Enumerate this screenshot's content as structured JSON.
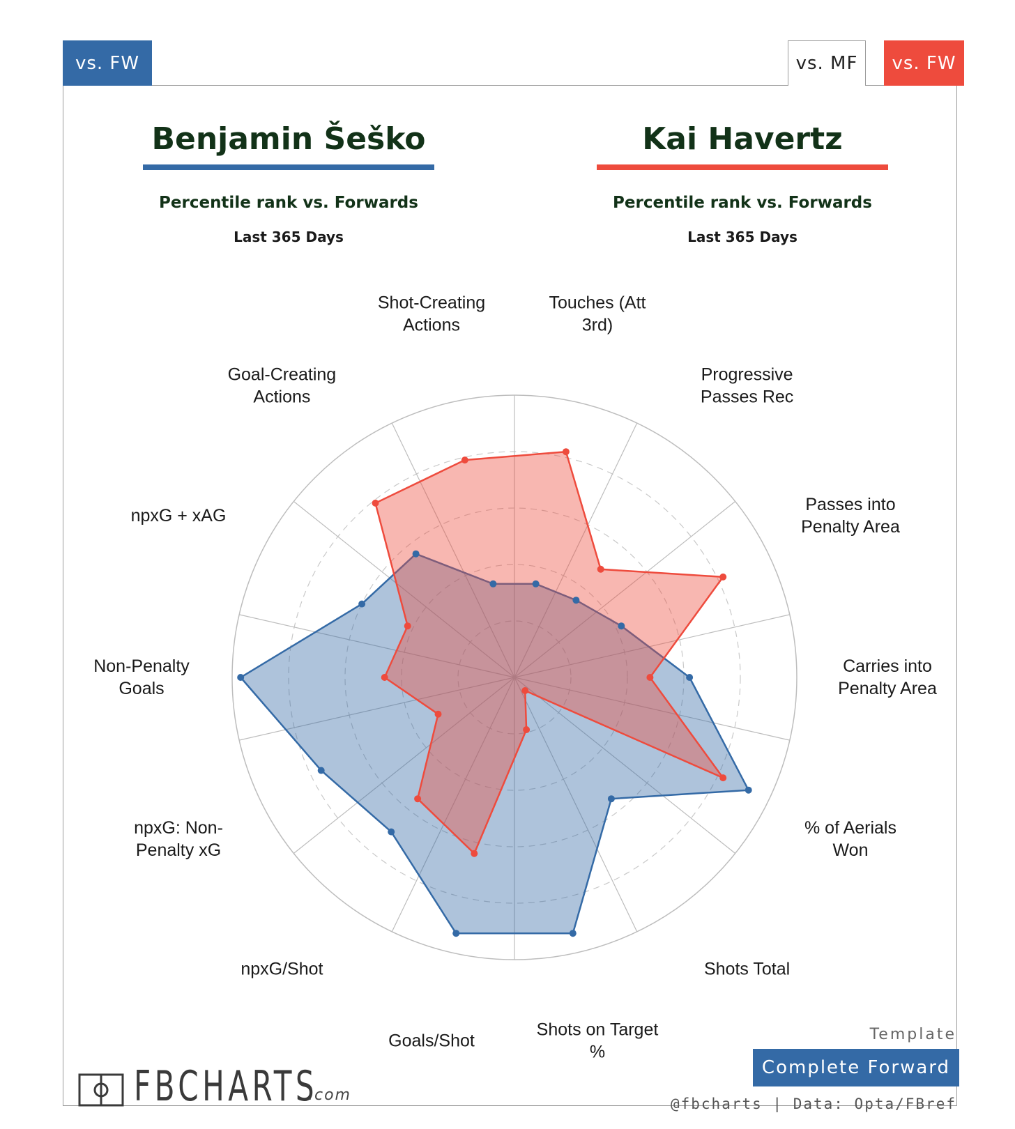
{
  "tabs": {
    "left": "vs. FW",
    "mf": "vs. MF",
    "fw": "vs. FW"
  },
  "players": {
    "left": {
      "name": "Benjamin Šeško",
      "subtitle": "Percentile rank vs. Forwards",
      "period": "Last 365 Days",
      "color": "#346aa6"
    },
    "right": {
      "name": "Kai Havertz",
      "subtitle": "Percentile rank vs. Forwards",
      "period": "Last 365 Days",
      "color": "#ee4b3d"
    }
  },
  "chart_data": {
    "type": "radar",
    "title": "",
    "range": [
      0,
      100
    ],
    "categories": [
      [
        "Touches (Att",
        "3rd)"
      ],
      [
        "Progressive",
        "Passes Rec"
      ],
      [
        "Passes into",
        "Penalty Area"
      ],
      [
        "Carries into",
        "Penalty Area"
      ],
      [
        "% of Aerials",
        "Won"
      ],
      [
        "Shots Total"
      ],
      [
        "Shots on Target",
        "%"
      ],
      [
        "Goals/Shot"
      ],
      [
        "npxG/Shot"
      ],
      [
        "npxG: Non-",
        "Penalty xG"
      ],
      [
        "Non-Penalty",
        "Goals"
      ],
      [
        "npxG + xAG"
      ],
      [
        "Goal-Creating",
        "Actions"
      ],
      [
        "Shot-Creating",
        "Actions"
      ]
    ],
    "series": [
      {
        "name": "Benjamin Šeško",
        "color": "#346aa6",
        "fill": "rgba(52,106,166,0.40)",
        "values": [
          34,
          35,
          42,
          62,
          92,
          55,
          93,
          93,
          70,
          76,
          97,
          60,
          56,
          34
        ]
      },
      {
        "name": "Kai Havertz",
        "color": "#ee4b3d",
        "fill": "rgba(238,75,61,0.40)",
        "values": [
          82,
          49,
          82,
          48,
          82,
          6,
          19,
          64,
          55,
          30,
          46,
          42,
          79,
          79
        ]
      }
    ],
    "grid": {
      "rings": [
        20,
        40,
        60,
        80
      ],
      "outer": 100,
      "spokes": true
    }
  },
  "footer": {
    "brand": "FBCHARTS",
    "brand_suffix": ".com",
    "template_label": "Template",
    "template_value": "Complete Forward",
    "credits": "@fbcharts | Data: Opta/FBref"
  }
}
